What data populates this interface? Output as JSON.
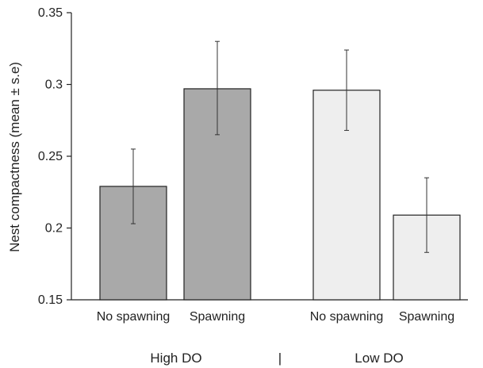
{
  "chart_data": {
    "type": "bar",
    "ylabel": "Nest compactness (mean ± s.e)",
    "ylim": [
      0.15,
      0.35
    ],
    "yticks": [
      "0.15",
      "0.2",
      "0.25",
      "0.3",
      "0.35"
    ],
    "ytick_values": [
      0.15,
      0.2,
      0.25,
      0.3,
      0.35
    ],
    "grid": false,
    "groups": [
      {
        "label": "High DO",
        "color": "#a9a9a9"
      },
      {
        "label": "Low DO",
        "color": "#eeeeee"
      }
    ],
    "group_separator": "|",
    "bars": [
      {
        "category": "No spawning",
        "group": 0,
        "value": 0.229,
        "err_low": 0.203,
        "err_high": 0.255
      },
      {
        "category": "Spawning",
        "group": 0,
        "value": 0.297,
        "err_low": 0.265,
        "err_high": 0.33
      },
      {
        "category": "No spawning",
        "group": 1,
        "value": 0.296,
        "err_low": 0.268,
        "err_high": 0.324
      },
      {
        "category": "Spawning",
        "group": 1,
        "value": 0.209,
        "err_low": 0.183,
        "err_high": 0.235
      }
    ]
  }
}
